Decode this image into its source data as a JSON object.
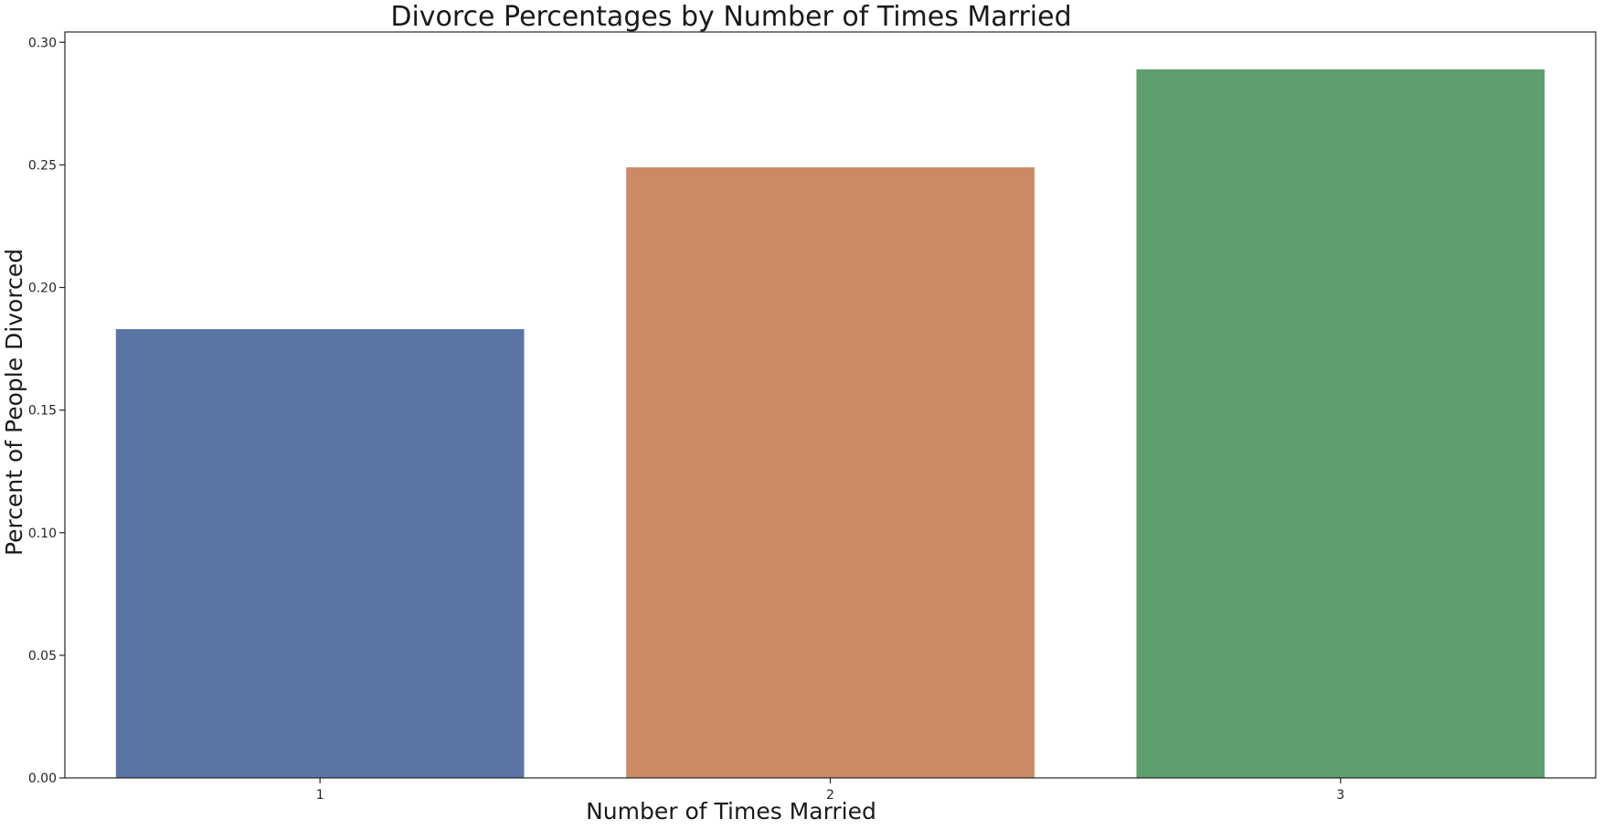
{
  "chart_data": {
    "type": "bar",
    "title": "Divorce Percentages by Number of Times Married",
    "xlabel": "Number of Times Married",
    "ylabel": "Percent of People Divorced",
    "categories": [
      "1",
      "2",
      "3"
    ],
    "values": [
      0.183,
      0.249,
      0.289
    ],
    "colors": [
      "#5875a4",
      "#cc8963",
      "#5f9e6e"
    ],
    "ylim": [
      0,
      0.3042
    ],
    "yticks": [
      "0.00",
      "0.05",
      "0.10",
      "0.15",
      "0.20",
      "0.25",
      "0.30"
    ],
    "ytick_values": [
      0,
      0.05,
      0.1,
      0.15,
      0.2,
      0.25,
      0.3
    ],
    "grid": false,
    "legend": "none"
  }
}
